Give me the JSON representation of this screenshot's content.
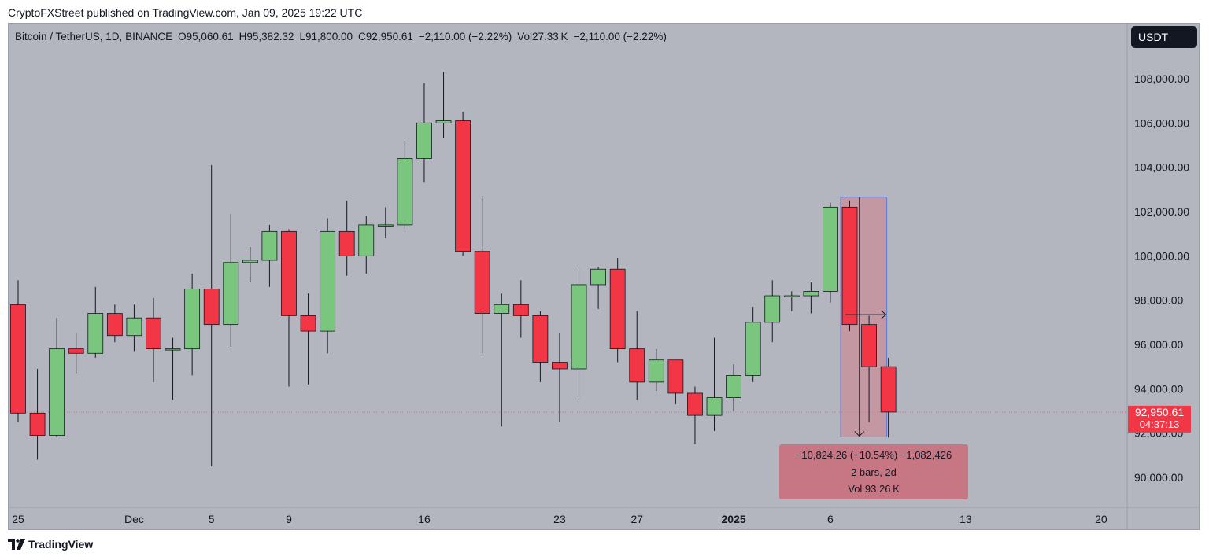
{
  "header": {
    "published": "CryptoFXStreet published on TradingView.com, Jan 09, 2025 19:22 UTC"
  },
  "footer": {
    "brand": "TradingView"
  },
  "chart_data": {
    "type": "candlestick",
    "legend_symbol": "Bitcoin / TetherUS, 1D, BINANCE",
    "ohlc": {
      "o_label": "O",
      "o": "95,060.61",
      "h_label": "H",
      "h": "95,382.32",
      "l_label": "L",
      "l": "91,800.00",
      "c_label": "C",
      "c": "92,950.61",
      "change": "−2,110.00 (−2.22%)"
    },
    "volume": {
      "label": "Vol",
      "value": "27.33 K",
      "change": "−2,110.00 (−2.22%)"
    },
    "currency": "USDT",
    "ylim": [
      88600,
      109700
    ],
    "y_ticks": [
      90000,
      92000,
      94000,
      96000,
      98000,
      100000,
      102000,
      104000,
      106000,
      108000
    ],
    "y_tick_labels": [
      "90,000.00",
      "92,000.00",
      "94,000.00",
      "96,000.00",
      "98,000.00",
      "100,000.00",
      "102,000.00",
      "104,000.00",
      "106,000.00",
      "108,000.00"
    ],
    "x_ticks": [
      {
        "index": 0,
        "label": "25",
        "bold": false
      },
      {
        "index": 6,
        "label": "Dec",
        "bold": false
      },
      {
        "index": 10,
        "label": "5",
        "bold": false
      },
      {
        "index": 14,
        "label": "9",
        "bold": false
      },
      {
        "index": 21,
        "label": "16",
        "bold": false
      },
      {
        "index": 28,
        "label": "23",
        "bold": false
      },
      {
        "index": 32,
        "label": "27",
        "bold": false
      },
      {
        "index": 37,
        "label": "2025",
        "bold": true
      },
      {
        "index": 42,
        "label": "6",
        "bold": false
      },
      {
        "index": 49,
        "label": "13",
        "bold": false
      },
      {
        "index": 56,
        "label": "20",
        "bold": false
      }
    ],
    "current_price": 92950.61,
    "current_price_label": "92,950.61",
    "countdown": "04:37:13",
    "candles": [
      {
        "o": 97800,
        "h": 98900,
        "l": 92500,
        "c": 92900
      },
      {
        "o": 92900,
        "h": 94900,
        "l": 90800,
        "c": 91900
      },
      {
        "o": 91900,
        "h": 97200,
        "l": 91800,
        "c": 95800
      },
      {
        "o": 95800,
        "h": 96500,
        "l": 94700,
        "c": 95600
      },
      {
        "o": 95600,
        "h": 98600,
        "l": 95400,
        "c": 97400
      },
      {
        "o": 97400,
        "h": 97800,
        "l": 96100,
        "c": 96400
      },
      {
        "o": 96400,
        "h": 97800,
        "l": 95700,
        "c": 97200
      },
      {
        "o": 97200,
        "h": 98100,
        "l": 94300,
        "c": 95800
      },
      {
        "o": 95800,
        "h": 96300,
        "l": 93500,
        "c": 95800
      },
      {
        "o": 95800,
        "h": 99200,
        "l": 94600,
        "c": 98500
      },
      {
        "o": 98500,
        "h": 104100,
        "l": 90500,
        "c": 96900
      },
      {
        "o": 96900,
        "h": 101900,
        "l": 95900,
        "c": 99700
      },
      {
        "o": 99700,
        "h": 100400,
        "l": 98800,
        "c": 99800
      },
      {
        "o": 99800,
        "h": 101400,
        "l": 98600,
        "c": 101100
      },
      {
        "o": 101100,
        "h": 101200,
        "l": 94100,
        "c": 97300
      },
      {
        "o": 97300,
        "h": 98300,
        "l": 94200,
        "c": 96600
      },
      {
        "o": 96600,
        "h": 101700,
        "l": 95600,
        "c": 101100
      },
      {
        "o": 101100,
        "h": 102500,
        "l": 99100,
        "c": 100000
      },
      {
        "o": 100000,
        "h": 101800,
        "l": 99200,
        "c": 101400
      },
      {
        "o": 101400,
        "h": 102200,
        "l": 100800,
        "c": 101400
      },
      {
        "o": 101400,
        "h": 105200,
        "l": 101200,
        "c": 104400
      },
      {
        "o": 104400,
        "h": 107800,
        "l": 103300,
        "c": 106000
      },
      {
        "o": 106000,
        "h": 108300,
        "l": 105300,
        "c": 106100
      },
      {
        "o": 106100,
        "h": 106500,
        "l": 100000,
        "c": 100200
      },
      {
        "o": 100200,
        "h": 102700,
        "l": 95600,
        "c": 97400
      },
      {
        "o": 97400,
        "h": 98300,
        "l": 92300,
        "c": 97800
      },
      {
        "o": 97800,
        "h": 98900,
        "l": 96300,
        "c": 97300
      },
      {
        "o": 97300,
        "h": 97500,
        "l": 94300,
        "c": 95200
      },
      {
        "o": 95200,
        "h": 96500,
        "l": 92500,
        "c": 94900
      },
      {
        "o": 94900,
        "h": 99500,
        "l": 93500,
        "c": 98700
      },
      {
        "o": 98700,
        "h": 99500,
        "l": 97600,
        "c": 99400
      },
      {
        "o": 99400,
        "h": 99900,
        "l": 95200,
        "c": 95800
      },
      {
        "o": 95800,
        "h": 97500,
        "l": 93500,
        "c": 94300
      },
      {
        "o": 94300,
        "h": 95800,
        "l": 93900,
        "c": 95300
      },
      {
        "o": 95300,
        "h": 95300,
        "l": 93300,
        "c": 93800
      },
      {
        "o": 93800,
        "h": 94100,
        "l": 91500,
        "c": 92800
      },
      {
        "o": 92800,
        "h": 96300,
        "l": 92100,
        "c": 93600
      },
      {
        "o": 93600,
        "h": 95100,
        "l": 93000,
        "c": 94600
      },
      {
        "o": 94600,
        "h": 97700,
        "l": 94300,
        "c": 97000
      },
      {
        "o": 97000,
        "h": 98900,
        "l": 96100,
        "c": 98200
      },
      {
        "o": 98200,
        "h": 98400,
        "l": 97500,
        "c": 98200
      },
      {
        "o": 98200,
        "h": 98800,
        "l": 97400,
        "c": 98400
      },
      {
        "o": 98400,
        "h": 102400,
        "l": 97900,
        "c": 102200
      },
      {
        "o": 102200,
        "h": 102500,
        "l": 96600,
        "c": 96900
      },
      {
        "o": 96900,
        "h": 97300,
        "l": 92500,
        "c": 95000
      },
      {
        "o": 95000,
        "h": 95400,
        "l": 91800,
        "c": 92950
      }
    ],
    "measure": {
      "from_index": 43,
      "to_index": 45,
      "top": 102650,
      "bottom": 91830,
      "line1": "−10,824.26 (−10.54%) −1,082,426",
      "line2": "2 bars, 2d",
      "line3": "Vol 93.26 K"
    },
    "colors": {
      "up": "#7bc67f",
      "down": "#f23645",
      "panel_bg": "#b3b6bf",
      "measure_fill": "#d17f8a",
      "measure_box": "#c96f7c",
      "measure_border": "#5b7bd9",
      "price_line": "#d96b7b"
    }
  }
}
